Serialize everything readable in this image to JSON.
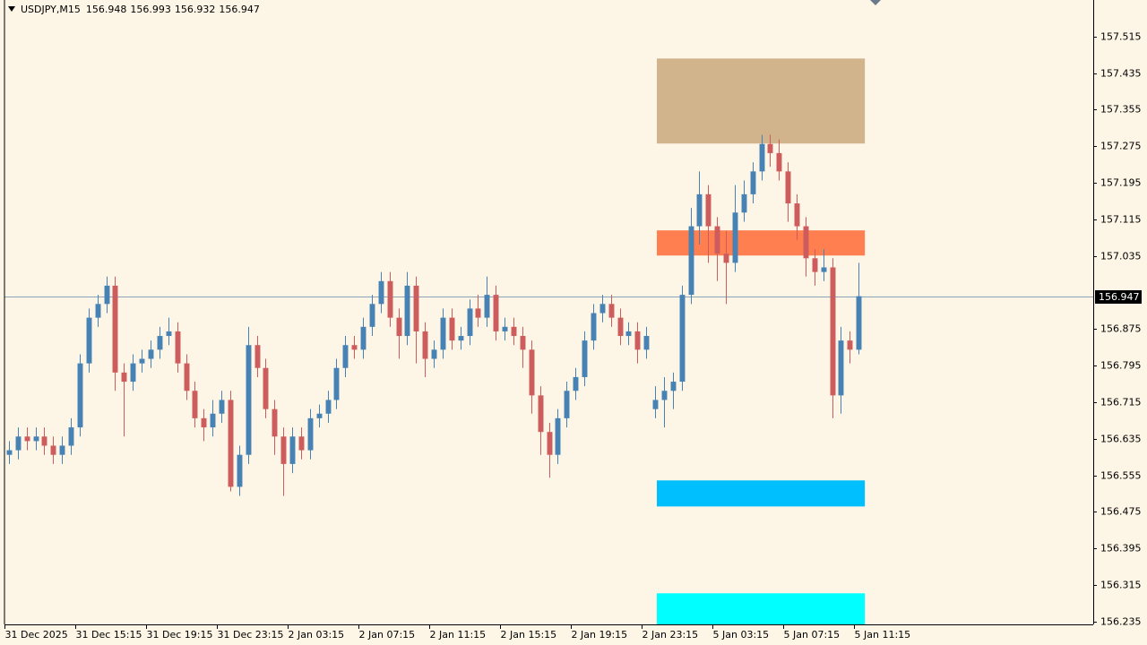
{
  "chart_data": {
    "type": "candlestick",
    "title": "USDJPY,M15",
    "quote": [
      156.948,
      156.993,
      156.932,
      156.947
    ],
    "bid": 156.947,
    "up_color": "#4682b4",
    "down_color": "#cd5c5c",
    "bid_line_color": "#8fa3b8",
    "ylim": [
      156.229,
      157.595
    ],
    "yticks": [
      157.515,
      157.435,
      157.355,
      157.275,
      157.195,
      157.115,
      157.035,
      156.875,
      156.795,
      156.715,
      156.635,
      156.555,
      156.475,
      156.395,
      156.315,
      156.235
    ],
    "xlim": [
      0,
      123
    ],
    "xticks": [
      {
        "value": 0,
        "label": "31 Dec 2025"
      },
      {
        "value": 8,
        "label": "31 Dec 15:15"
      },
      {
        "value": 16,
        "label": "31 Dec 19:15"
      },
      {
        "value": 24,
        "label": "31 Dec 23:15"
      },
      {
        "value": 32,
        "label": "2 Jan 03:15"
      },
      {
        "value": 40,
        "label": "2 Jan 07:15"
      },
      {
        "value": 48,
        "label": "2 Jan 11:15"
      },
      {
        "value": 56,
        "label": "2 Jan 15:15"
      },
      {
        "value": 64,
        "label": "2 Jan 19:15"
      },
      {
        "value": 72,
        "label": "2 Jan 23:15"
      },
      {
        "value": 80,
        "label": "5 Jan 03:15"
      },
      {
        "value": 88,
        "label": "5 Jan 07:15"
      },
      {
        "value": 96,
        "label": "5 Jan 11:15"
      }
    ],
    "zones": [
      {
        "top": 157.467,
        "bottom": 157.281,
        "start": 73.7,
        "end": 97.2,
        "color": "#d2b48c"
      },
      {
        "top": 157.091,
        "bottom": 157.036,
        "start": 73.7,
        "end": 97.2,
        "color": "#ff7f50"
      },
      {
        "top": 156.544,
        "bottom": 156.487,
        "start": 73.7,
        "end": 97.2,
        "color": "#00bfff"
      },
      {
        "top": 156.297,
        "bottom": 156.229,
        "start": 73.7,
        "end": 97.2,
        "color": "#00ffff"
      }
    ],
    "open": [
      156.6,
      156.61,
      156.64,
      156.63,
      156.64,
      156.62,
      156.6,
      156.62,
      156.66,
      156.8,
      156.9,
      156.93,
      156.97,
      156.78,
      156.76,
      156.8,
      156.81,
      156.83,
      156.86,
      156.87,
      156.8,
      156.74,
      156.68,
      156.66,
      156.69,
      156.72,
      156.53,
      156.6,
      156.84,
      156.79,
      156.7,
      156.64,
      156.58,
      156.64,
      156.61,
      156.68,
      156.69,
      156.72,
      156.79,
      156.84,
      156.83,
      156.88,
      156.93,
      156.98,
      156.9,
      156.86,
      156.97,
      156.87,
      156.81,
      156.83,
      156.9,
      156.85,
      156.86,
      156.92,
      156.9,
      156.95,
      156.87,
      156.88,
      156.86,
      156.83,
      156.73,
      156.65,
      156.6,
      156.68,
      156.74,
      156.77,
      156.85,
      156.91,
      156.93,
      156.9,
      156.86,
      156.87,
      156.83,
      156.7,
      156.72,
      156.74,
      156.76,
      156.95,
      157.1,
      157.17,
      157.1,
      157.04,
      157.02,
      157.13,
      157.17,
      157.22,
      157.28,
      157.26,
      157.22,
      157.15,
      157.1,
      157.03,
      157.0,
      157.01,
      156.73,
      156.85,
      156.83
    ],
    "high": [
      156.63,
      156.66,
      156.66,
      156.66,
      156.66,
      156.64,
      156.64,
      156.68,
      156.82,
      156.92,
      156.95,
      156.99,
      156.99,
      156.8,
      156.82,
      156.83,
      156.85,
      156.88,
      156.9,
      156.89,
      156.82,
      156.76,
      156.7,
      156.72,
      156.74,
      156.74,
      156.62,
      156.88,
      156.86,
      156.81,
      156.72,
      156.66,
      156.66,
      156.66,
      156.7,
      156.71,
      156.74,
      156.81,
      156.86,
      156.86,
      156.9,
      156.95,
      157.0,
      157.0,
      156.92,
      157.0,
      156.99,
      156.89,
      156.85,
      156.92,
      156.92,
      156.88,
      156.94,
      156.95,
      156.99,
      156.97,
      156.9,
      156.9,
      156.88,
      156.85,
      156.75,
      156.67,
      156.7,
      156.76,
      156.79,
      156.87,
      156.93,
      156.95,
      156.95,
      156.92,
      156.89,
      156.89,
      156.88,
      156.75,
      156.77,
      156.78,
      156.97,
      157.14,
      157.22,
      157.19,
      157.12,
      157.09,
      157.19,
      157.2,
      157.24,
      157.3,
      157.3,
      157.29,
      157.24,
      157.17,
      157.12,
      157.05,
      157.05,
      157.03,
      156.88,
      156.87,
      157.02
    ],
    "low": [
      156.58,
      156.59,
      156.61,
      156.61,
      156.6,
      156.58,
      156.58,
      156.6,
      156.64,
      156.78,
      156.88,
      156.91,
      156.74,
      156.64,
      156.74,
      156.78,
      156.79,
      156.81,
      156.84,
      156.78,
      156.72,
      156.66,
      156.63,
      156.64,
      156.67,
      156.52,
      156.51,
      156.58,
      156.77,
      156.68,
      156.6,
      156.51,
      156.56,
      156.59,
      156.59,
      156.66,
      156.67,
      156.7,
      156.77,
      156.81,
      156.81,
      156.86,
      156.91,
      156.88,
      156.81,
      156.84,
      156.8,
      156.77,
      156.79,
      156.81,
      156.83,
      156.83,
      156.84,
      156.88,
      156.88,
      156.85,
      156.85,
      156.84,
      156.79,
      156.69,
      156.6,
      156.55,
      156.58,
      156.66,
      156.72,
      156.75,
      156.83,
      156.89,
      156.88,
      156.84,
      156.84,
      156.8,
      156.81,
      156.68,
      156.66,
      156.7,
      156.74,
      156.93,
      157.06,
      157.02,
      156.98,
      156.93,
      157.0,
      157.11,
      157.15,
      157.2,
      157.23,
      157.2,
      157.11,
      157.07,
      156.99,
      156.97,
      156.98,
      156.68,
      156.69,
      156.8,
      156.82
    ],
    "close": [
      156.61,
      156.64,
      156.63,
      156.64,
      156.62,
      156.6,
      156.62,
      156.66,
      156.8,
      156.9,
      156.93,
      156.97,
      156.78,
      156.76,
      156.8,
      156.81,
      156.83,
      156.86,
      156.87,
      156.8,
      156.74,
      156.68,
      156.66,
      156.69,
      156.72,
      156.53,
      156.6,
      156.84,
      156.79,
      156.7,
      156.64,
      156.58,
      156.64,
      156.61,
      156.68,
      156.69,
      156.72,
      156.79,
      156.84,
      156.83,
      156.88,
      156.93,
      156.98,
      156.9,
      156.86,
      156.97,
      156.87,
      156.81,
      156.83,
      156.9,
      156.85,
      156.86,
      156.92,
      156.9,
      156.95,
      156.87,
      156.88,
      156.86,
      156.83,
      156.73,
      156.65,
      156.6,
      156.68,
      156.74,
      156.77,
      156.85,
      156.91,
      156.93,
      156.9,
      156.86,
      156.87,
      156.83,
      156.86,
      156.72,
      156.74,
      156.76,
      156.95,
      157.1,
      157.17,
      157.1,
      157.04,
      157.02,
      157.13,
      157.17,
      157.22,
      157.28,
      157.26,
      157.22,
      157.15,
      157.1,
      157.03,
      157.0,
      157.01,
      156.73,
      156.85,
      156.83,
      156.947
    ]
  }
}
